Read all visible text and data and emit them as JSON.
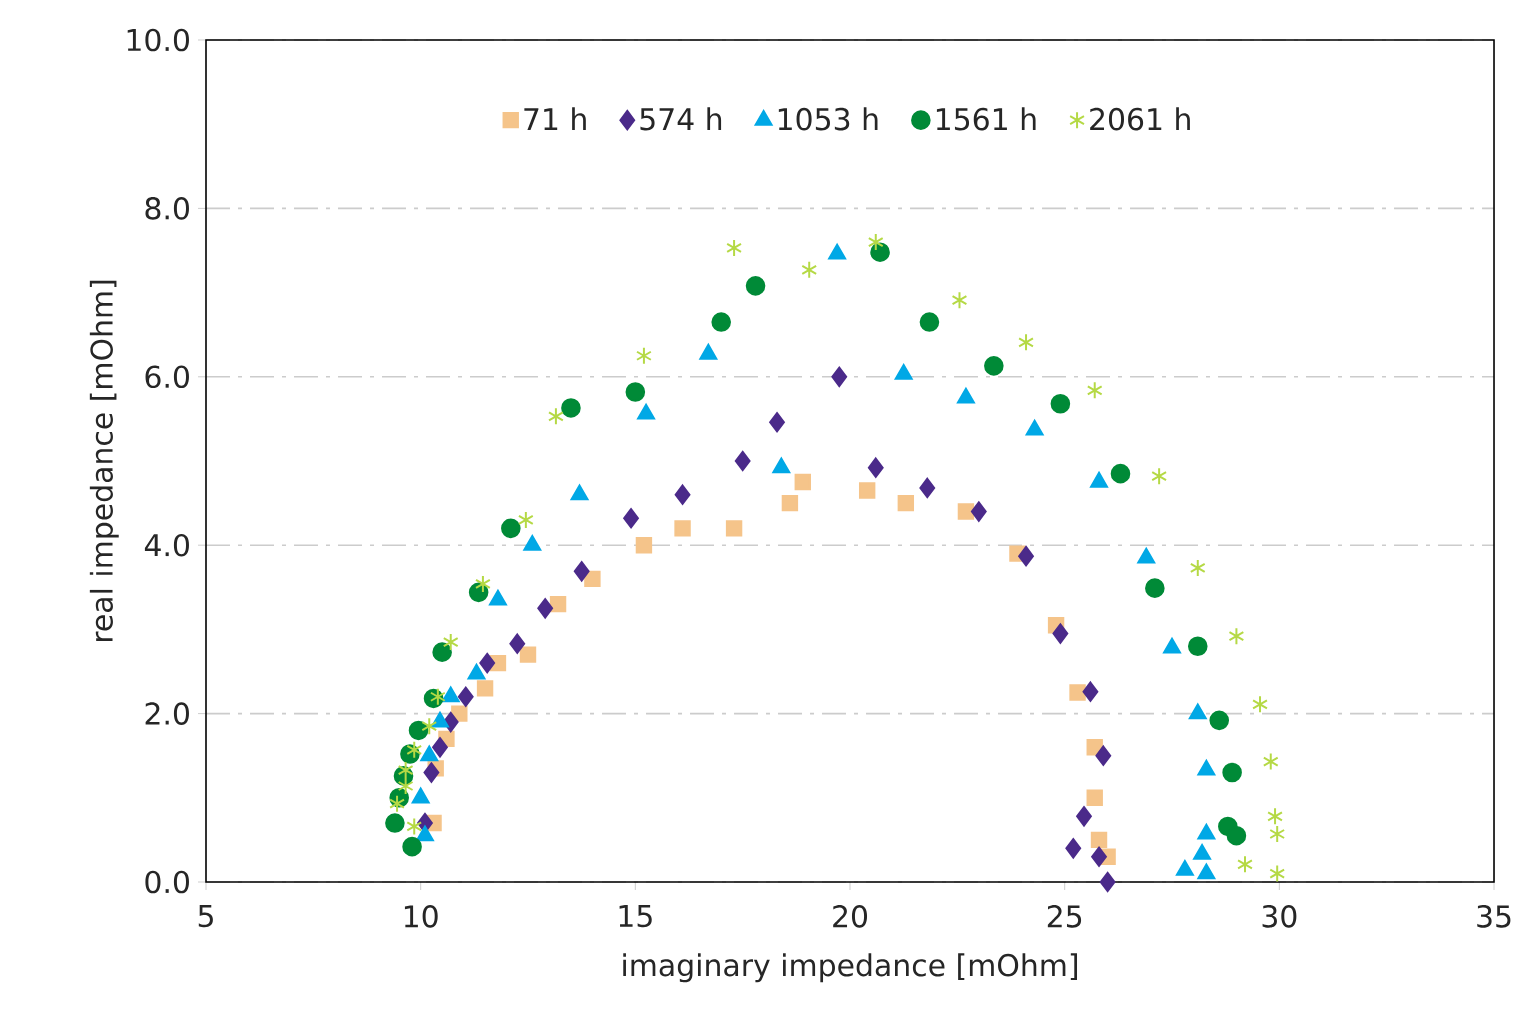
{
  "chart_data": {
    "type": "scatter",
    "xlabel": "imaginary impedance [mOhm]",
    "ylabel": "real impedance [mOhm]",
    "xlim": [
      5,
      35
    ],
    "xticks": [
      5,
      10,
      15,
      20,
      25,
      30,
      35
    ],
    "ylim": [
      0,
      10
    ],
    "yticks": [
      {
        "value": 0,
        "label": "0.0"
      },
      {
        "value": 2,
        "label": "2.0"
      },
      {
        "value": 4,
        "label": "4.0"
      },
      {
        "value": 6,
        "label": "6.0"
      },
      {
        "value": 8,
        "label": "8.0"
      },
      {
        "value": 10,
        "label": "10.0"
      }
    ],
    "grid": "y",
    "legend": "top",
    "series": [
      {
        "name": "71 h",
        "color": "#f5c48a",
        "marker": "square",
        "x": [
          10.3,
          10.35,
          10.6,
          10.9,
          11.5,
          11.8,
          12.5,
          13.2,
          14.0,
          15.2,
          16.1,
          17.3,
          18.6,
          18.9,
          20.4,
          21.3,
          22.7,
          23.9,
          24.8,
          25.3,
          25.7,
          25.7,
          25.8,
          26.0
        ],
        "values": [
          0.7,
          1.35,
          1.7,
          2.0,
          2.3,
          2.6,
          2.7,
          3.3,
          3.6,
          4.0,
          4.2,
          4.2,
          4.5,
          4.75,
          4.65,
          4.5,
          4.4,
          3.9,
          3.05,
          2.25,
          1.6,
          1.0,
          0.5,
          0.3
        ]
      },
      {
        "name": "574 h",
        "color": "#4b2a8a",
        "marker": "diamond",
        "x": [
          10.1,
          10.25,
          10.45,
          10.7,
          11.05,
          11.55,
          12.25,
          12.9,
          13.75,
          14.9,
          16.1,
          17.5,
          18.3,
          19.75,
          20.6,
          21.8,
          23.0,
          24.1,
          24.9,
          25.6,
          25.9,
          25.45,
          25.2,
          25.8,
          26.0
        ],
        "values": [
          0.7,
          1.3,
          1.6,
          1.9,
          2.2,
          2.6,
          2.83,
          3.25,
          3.69,
          4.32,
          4.6,
          5.0,
          5.46,
          6.0,
          4.92,
          4.68,
          4.4,
          3.87,
          2.95,
          2.26,
          1.5,
          0.78,
          0.4,
          0.3,
          0.0
        ]
      },
      {
        "name": "1053 h",
        "color": "#00a8e6",
        "marker": "triangle",
        "x": [
          10.1,
          10.0,
          10.2,
          10.45,
          10.7,
          11.3,
          11.8,
          12.6,
          13.7,
          15.25,
          16.7,
          18.4,
          19.7,
          21.25,
          22.7,
          24.3,
          25.8,
          26.9,
          27.5,
          28.1,
          28.3,
          28.3,
          28.2,
          27.8,
          28.3
        ],
        "values": [
          0.55,
          1.0,
          1.5,
          1.9,
          2.2,
          2.47,
          3.35,
          4.0,
          4.6,
          5.56,
          6.27,
          4.92,
          7.46,
          6.03,
          5.75,
          5.37,
          4.75,
          3.85,
          2.78,
          2.0,
          1.33,
          0.57,
          0.33,
          0.14,
          0.1
        ]
      },
      {
        "name": "1561 h",
        "color": "#008a37",
        "marker": "circle",
        "x": [
          9.8,
          9.4,
          9.5,
          9.6,
          9.75,
          9.95,
          10.3,
          10.5,
          11.35,
          12.1,
          13.5,
          15.0,
          17.0,
          17.8,
          20.7,
          21.85,
          23.35,
          24.9,
          26.3,
          27.1,
          28.1,
          28.6,
          28.9,
          28.8,
          29.0
        ],
        "values": [
          0.42,
          0.7,
          1.0,
          1.26,
          1.52,
          1.8,
          2.18,
          2.73,
          3.44,
          4.2,
          5.63,
          5.82,
          6.65,
          7.08,
          7.48,
          6.65,
          6.13,
          5.68,
          4.85,
          3.49,
          2.8,
          1.92,
          1.3,
          0.66,
          0.55
        ]
      },
      {
        "name": "2061 h",
        "color": "#b5d945",
        "marker": "cross",
        "x": [
          9.85,
          9.45,
          9.65,
          9.65,
          9.85,
          10.2,
          10.4,
          10.7,
          11.45,
          12.45,
          13.15,
          15.2,
          17.3,
          19.05,
          20.6,
          22.55,
          24.1,
          25.7,
          27.2,
          28.1,
          29.0,
          29.55,
          29.8,
          29.9,
          29.95,
          29.2,
          29.95
        ],
        "values": [
          0.66,
          0.93,
          1.14,
          1.33,
          1.57,
          1.85,
          2.2,
          2.85,
          3.54,
          4.3,
          5.53,
          6.25,
          7.53,
          7.27,
          7.6,
          6.91,
          6.41,
          5.84,
          4.82,
          3.73,
          2.92,
          2.11,
          1.43,
          0.78,
          0.57,
          0.21,
          0.1
        ]
      }
    ]
  }
}
